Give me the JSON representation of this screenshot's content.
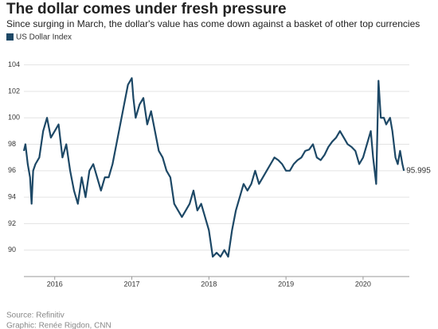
{
  "chart_data": {
    "type": "line",
    "title": "The dollar comes under fresh pressure",
    "subtitle": "Since surging in March, the dollar's value has come down against a basket of other top currencies",
    "source": "Source: Refinitiv",
    "credit": "Graphic: Renée Rigdon, CNN",
    "x": [
      2015.6,
      2015.62,
      2015.65,
      2015.68,
      2015.7,
      2015.72,
      2015.75,
      2015.8,
      2015.85,
      2015.9,
      2015.95,
      2016.0,
      2016.05,
      2016.1,
      2016.15,
      2016.2,
      2016.25,
      2016.3,
      2016.35,
      2016.4,
      2016.45,
      2016.5,
      2016.55,
      2016.6,
      2016.65,
      2016.7,
      2016.75,
      2016.8,
      2016.85,
      2016.9,
      2016.95,
      2017.0,
      2017.02,
      2017.05,
      2017.1,
      2017.15,
      2017.2,
      2017.25,
      2017.3,
      2017.35,
      2017.4,
      2017.45,
      2017.5,
      2017.55,
      2017.6,
      2017.65,
      2017.7,
      2017.75,
      2017.8,
      2017.85,
      2017.9,
      2017.95,
      2018.0,
      2018.05,
      2018.1,
      2018.15,
      2018.2,
      2018.25,
      2018.3,
      2018.35,
      2018.4,
      2018.45,
      2018.5,
      2018.55,
      2018.6,
      2018.65,
      2018.7,
      2018.75,
      2018.8,
      2018.85,
      2018.9,
      2018.95,
      2019.0,
      2019.05,
      2019.1,
      2019.15,
      2019.2,
      2019.25,
      2019.3,
      2019.35,
      2019.4,
      2019.45,
      2019.5,
      2019.55,
      2019.6,
      2019.65,
      2019.7,
      2019.75,
      2019.8,
      2019.85,
      2019.9,
      2019.95,
      2020.0,
      2020.05,
      2020.1,
      2020.13,
      2020.17,
      2020.2,
      2020.23,
      2020.27,
      2020.3,
      2020.35,
      2020.38,
      2020.42,
      2020.45,
      2020.48,
      2020.51,
      2020.53
    ],
    "series": [
      {
        "name": "US Dollar Index",
        "color": "#1d4866",
        "values": [
          97.5,
          98,
          96.5,
          95.5,
          93.5,
          96,
          96.5,
          97,
          99,
          100,
          98.5,
          99,
          99.5,
          97,
          98,
          96,
          94.5,
          93.5,
          95.5,
          94,
          96,
          96.5,
          95.5,
          94.5,
          95.5,
          95.5,
          96.5,
          98,
          99.5,
          101,
          102.5,
          103,
          101.5,
          100,
          101,
          101.5,
          99.5,
          100.5,
          99,
          97.5,
          97,
          96,
          95.5,
          93.5,
          93,
          92.5,
          93,
          93.5,
          94.5,
          93,
          93.5,
          92.5,
          91.5,
          89.5,
          89.8,
          89.5,
          90,
          89.5,
          91.5,
          93,
          94,
          95,
          94.5,
          95,
          96,
          95,
          95.5,
          96,
          96.5,
          97,
          96.8,
          96.5,
          96,
          96,
          96.5,
          96.8,
          97,
          97.5,
          97.6,
          98,
          97,
          96.8,
          97.2,
          97.8,
          98.2,
          98.5,
          99,
          98.5,
          98,
          97.8,
          97.5,
          96.5,
          97,
          98,
          99,
          97,
          95,
          102.8,
          100,
          100,
          99.5,
          100,
          99,
          97,
          96.5,
          97.5,
          96.5,
          95.995
        ]
      }
    ],
    "xlim": [
      2015.6,
      2020.6
    ],
    "xticks": [
      2016,
      2017,
      2018,
      2019,
      2020
    ],
    "ylim": [
      88,
      104.7
    ],
    "yticks": [
      90,
      92,
      94,
      96,
      98,
      100,
      102,
      104
    ],
    "grid": true
  }
}
